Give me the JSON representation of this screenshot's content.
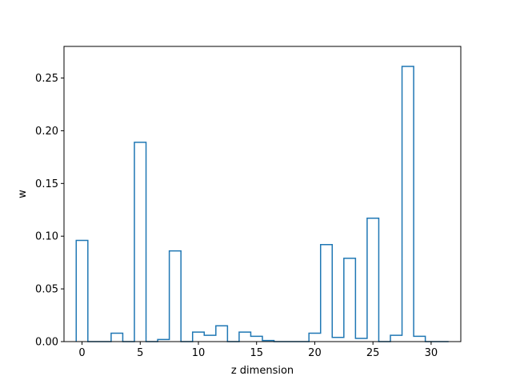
{
  "chart_data": {
    "type": "bar",
    "style": "step-histogram",
    "xlabel": "z dimension",
    "ylabel": "w",
    "xlim": [
      -1.55,
      32.55
    ],
    "ylim": [
      0,
      0.28
    ],
    "x_ticks": [
      0,
      5,
      10,
      15,
      20,
      25,
      30
    ],
    "x_tick_labels": [
      "0",
      "5",
      "10",
      "15",
      "20",
      "25",
      "30"
    ],
    "y_ticks": [
      0.0,
      0.05,
      0.1,
      0.15,
      0.2,
      0.25
    ],
    "y_tick_labels": [
      "0.00",
      "0.05",
      "0.10",
      "0.15",
      "0.20",
      "0.25"
    ],
    "grid": false,
    "line_color": "#1f77b4",
    "categories": [
      0,
      1,
      2,
      3,
      4,
      5,
      6,
      7,
      8,
      9,
      10,
      11,
      12,
      13,
      14,
      15,
      16,
      17,
      18,
      19,
      20,
      21,
      22,
      23,
      24,
      25,
      26,
      27,
      28,
      29,
      30,
      31
    ],
    "values": [
      0.096,
      0.0,
      0.0,
      0.008,
      0.0,
      0.189,
      0.0,
      0.002,
      0.086,
      0.0,
      0.009,
      0.006,
      0.015,
      0.0,
      0.009,
      0.005,
      0.001,
      0.0,
      0.0,
      0.0,
      0.008,
      0.092,
      0.004,
      0.079,
      0.003,
      0.117,
      0.0,
      0.006,
      0.261,
      0.005,
      0.0,
      0.0
    ]
  }
}
